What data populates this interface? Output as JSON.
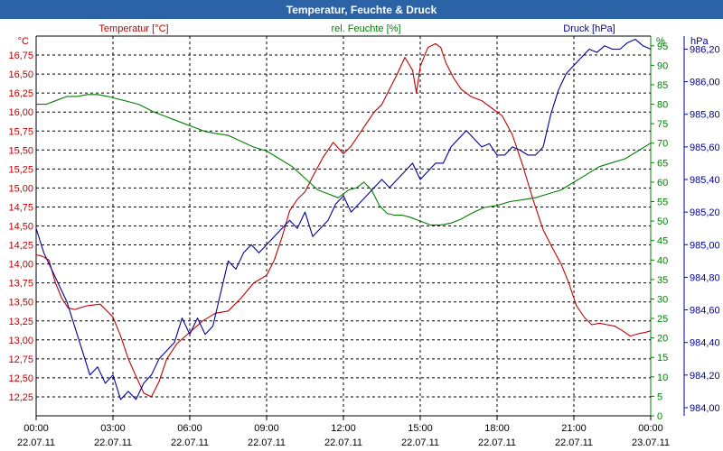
{
  "window": {
    "title": "Temperatur, Feuchte & Druck"
  },
  "chart_data": {
    "type": "line",
    "title": "Temperatur, Feuchte & Druck",
    "grid": true,
    "x_ticks": [
      {
        "time": "00:00",
        "date": "22.07.11"
      },
      {
        "time": "03:00",
        "date": "22.07.11"
      },
      {
        "time": "06:00",
        "date": "22.07.11"
      },
      {
        "time": "09:00",
        "date": "22.07.11"
      },
      {
        "time": "12:00",
        "date": "22.07.11"
      },
      {
        "time": "15:00",
        "date": "22.07.11"
      },
      {
        "time": "18:00",
        "date": "22.07.11"
      },
      {
        "time": "21:00",
        "date": "22.07.11"
      },
      {
        "time": "00:00",
        "date": "23.07.11"
      }
    ],
    "x_range_hours": [
      0,
      24
    ],
    "axes": {
      "temperature": {
        "label": "Temperatur [°C]",
        "unit": "°C",
        "color": "#c00000",
        "range": [
          12.0,
          17.0
        ],
        "ticks": [
          "12,25",
          "12,50",
          "12,75",
          "13,00",
          "13,25",
          "13,50",
          "13,75",
          "14,00",
          "14,25",
          "14,50",
          "14,75",
          "15,00",
          "15,25",
          "15,50",
          "15,75",
          "16,00",
          "16,25",
          "16,50",
          "16,75"
        ]
      },
      "humidity": {
        "label": "rel. Feuchte [%]",
        "unit": "%",
        "color": "#008000",
        "range": [
          0,
          97.5
        ],
        "ticks": [
          "0",
          "5",
          "10",
          "15",
          "20",
          "25",
          "30",
          "35",
          "40",
          "45",
          "50",
          "55",
          "60",
          "65",
          "70",
          "75",
          "80",
          "85",
          "90",
          "95"
        ]
      },
      "pressure": {
        "label": "Druck [hPa]",
        "unit": "hPa",
        "color": "#000099",
        "range": [
          983.95,
          986.28
        ],
        "ticks": [
          "984,00",
          "984,20",
          "984,40",
          "984,60",
          "984,80",
          "985,00",
          "985,20",
          "985,40",
          "985,60",
          "985,80",
          "986,00",
          "986,20"
        ]
      }
    },
    "series": [
      {
        "name": "Temperatur [°C]",
        "axis": "temperature",
        "color": "#c00000",
        "x_hours": [
          0,
          0.25,
          0.5,
          0.75,
          1.0,
          1.25,
          1.5,
          2.0,
          2.5,
          3.0,
          3.3,
          3.6,
          3.9,
          4.2,
          4.5,
          4.8,
          5.1,
          5.5,
          6.0,
          6.5,
          7.0,
          7.5,
          8.0,
          8.5,
          9.0,
          9.3,
          9.6,
          9.9,
          10.2,
          10.5,
          10.8,
          11.2,
          11.6,
          12.0,
          12.3,
          12.6,
          12.9,
          13.2,
          13.5,
          13.8,
          14.1,
          14.4,
          14.7,
          14.85,
          15.0,
          15.3,
          15.6,
          15.8,
          16.0,
          16.3,
          16.6,
          17.0,
          17.4,
          17.8,
          18.2,
          18.6,
          19.0,
          19.4,
          19.8,
          20.1,
          20.5,
          20.8,
          21.1,
          21.4,
          21.7,
          22.0,
          22.3,
          22.6,
          22.9,
          23.2,
          23.5,
          23.8,
          24.0
        ],
        "values": [
          14.12,
          14.1,
          14.05,
          13.75,
          13.55,
          13.42,
          13.4,
          13.45,
          13.47,
          13.3,
          13.05,
          12.75,
          12.52,
          12.3,
          12.25,
          12.45,
          12.75,
          12.95,
          13.1,
          13.25,
          13.35,
          13.38,
          13.55,
          13.75,
          13.85,
          14.05,
          14.35,
          14.7,
          14.85,
          14.95,
          15.15,
          15.4,
          15.6,
          15.45,
          15.55,
          15.7,
          15.85,
          16.0,
          16.1,
          16.3,
          16.5,
          16.72,
          16.55,
          16.25,
          16.6,
          16.85,
          16.9,
          16.85,
          16.65,
          16.45,
          16.3,
          16.2,
          16.15,
          16.05,
          15.95,
          15.7,
          15.3,
          14.85,
          14.45,
          14.25,
          14.0,
          13.75,
          13.45,
          13.3,
          13.2,
          13.22,
          13.2,
          13.18,
          13.12,
          13.05,
          13.08,
          13.1,
          13.12
        ]
      },
      {
        "name": "rel. Feuchte [%]",
        "axis": "humidity",
        "color": "#008000",
        "x_hours": [
          0,
          0.4,
          0.8,
          1.2,
          1.6,
          2.0,
          2.4,
          2.8,
          3.1,
          3.4,
          3.7,
          4.0,
          4.3,
          4.6,
          5.0,
          5.4,
          5.8,
          6.2,
          6.6,
          7.0,
          7.5,
          8.0,
          8.5,
          9.0,
          9.5,
          10.0,
          10.5,
          11.0,
          11.4,
          11.8,
          12.2,
          12.5,
          12.8,
          13.1,
          13.4,
          13.7,
          14.0,
          14.3,
          14.6,
          15.0,
          15.4,
          15.8,
          16.2,
          16.6,
          17.0,
          17.5,
          18.0,
          18.5,
          19.0,
          19.5,
          20.0,
          20.5,
          21.0,
          21.5,
          22.0,
          22.5,
          23.0,
          23.5,
          24.0
        ],
        "values": [
          80,
          80,
          81,
          82,
          82,
          82.5,
          82.5,
          82,
          81.5,
          81,
          80.5,
          80,
          79,
          78,
          77,
          76,
          75,
          74,
          73,
          72.5,
          72,
          70.5,
          69,
          68,
          66,
          64,
          61,
          58,
          57,
          56,
          58,
          58.5,
          60,
          58,
          54,
          52,
          51.5,
          51.5,
          51,
          50,
          49,
          49,
          49.5,
          50.5,
          52,
          53.5,
          54,
          55,
          55.5,
          56,
          57,
          58,
          60,
          62,
          64,
          65,
          66,
          68,
          70
        ]
      },
      {
        "name": "Druck [hPa]",
        "axis": "pressure",
        "color": "#000099",
        "x_hours": [
          0,
          0.3,
          0.6,
          0.9,
          1.2,
          1.5,
          1.8,
          2.1,
          2.4,
          2.7,
          3.0,
          3.3,
          3.6,
          3.9,
          4.2,
          4.5,
          4.8,
          5.1,
          5.4,
          5.7,
          6.0,
          6.3,
          6.6,
          6.9,
          7.2,
          7.5,
          7.8,
          8.1,
          8.4,
          8.7,
          9.0,
          9.3,
          9.6,
          9.9,
          10.2,
          10.5,
          10.8,
          11.1,
          11.4,
          11.7,
          12.0,
          12.3,
          12.6,
          12.9,
          13.2,
          13.5,
          13.8,
          14.1,
          14.4,
          14.7,
          15.0,
          15.3,
          15.6,
          15.9,
          16.2,
          16.5,
          16.8,
          17.1,
          17.4,
          17.7,
          18.0,
          18.3,
          18.6,
          18.9,
          19.2,
          19.5,
          19.8,
          20.1,
          20.4,
          20.7,
          21.0,
          21.3,
          21.6,
          21.9,
          22.2,
          22.5,
          22.8,
          23.1,
          23.4,
          23.7,
          24.0
        ],
        "values": [
          985.1,
          984.95,
          984.85,
          984.75,
          984.65,
          984.5,
          984.35,
          984.2,
          984.25,
          984.15,
          984.2,
          984.05,
          984.1,
          984.05,
          984.15,
          984.2,
          984.3,
          984.35,
          984.4,
          984.55,
          984.45,
          984.55,
          984.45,
          984.5,
          984.7,
          984.9,
          984.85,
          984.95,
          985.0,
          984.95,
          985.0,
          985.05,
          985.1,
          985.15,
          985.1,
          985.2,
          985.05,
          985.1,
          985.15,
          985.25,
          985.3,
          985.2,
          985.25,
          985.3,
          985.35,
          985.4,
          985.35,
          985.4,
          985.45,
          985.5,
          985.4,
          985.45,
          985.5,
          985.5,
          985.6,
          985.65,
          985.7,
          985.65,
          985.6,
          985.62,
          985.55,
          985.55,
          985.6,
          985.58,
          985.55,
          985.55,
          985.6,
          985.8,
          985.95,
          986.05,
          986.1,
          986.15,
          986.2,
          986.18,
          986.22,
          986.2,
          986.2,
          986.24,
          986.26,
          986.22,
          986.2
        ]
      }
    ]
  }
}
